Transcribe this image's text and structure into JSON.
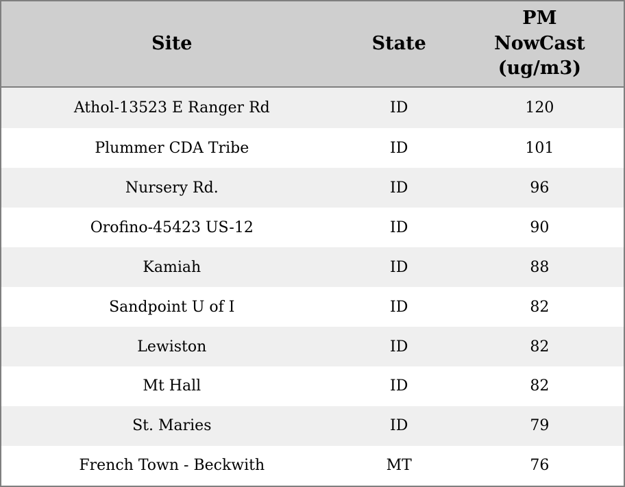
{
  "chart_data": {
    "type": "table",
    "columns": [
      "Site",
      "State",
      "PM NowCast (ug/m3)"
    ],
    "rows": [
      [
        "Athol-13523 E Ranger Rd",
        "ID",
        120
      ],
      [
        "Plummer CDA Tribe",
        "ID",
        101
      ],
      [
        "Nursery Rd.",
        "ID",
        96
      ],
      [
        "Orofino-45423 US-12",
        "ID",
        90
      ],
      [
        "Kamiah",
        "ID",
        88
      ],
      [
        "Sandpoint U of I",
        "ID",
        82
      ],
      [
        "Lewiston",
        "ID",
        82
      ],
      [
        "Mt Hall",
        "ID",
        82
      ],
      [
        "St. Maries",
        "ID",
        79
      ],
      [
        "French Town - Beckwith",
        "MT",
        76
      ]
    ]
  },
  "colors": {
    "header_bg": "#cfcfcf",
    "row_bg": "#ffffff",
    "row_alt_bg": "#efefef",
    "border": "#7f7f7f",
    "text": "#000000"
  }
}
